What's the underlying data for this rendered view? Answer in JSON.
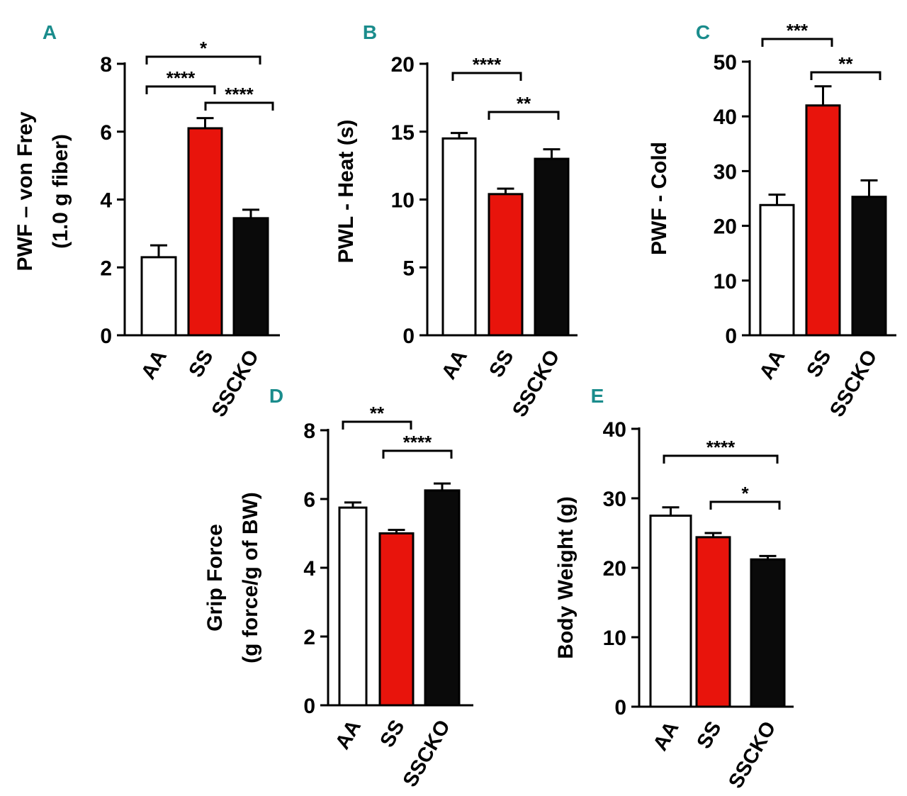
{
  "colors": {
    "AA": "#ffffff",
    "SS": "#e8140c",
    "SSCKO": "#0a0a0a",
    "panel_letter": "#1a8c8c"
  },
  "chart_data": [
    {
      "panel": "A",
      "type": "bar",
      "categories": [
        "AA",
        "SS",
        "SSCKO"
      ],
      "ylabel": [
        "PWF – von Frey",
        "(1.0 g fiber)"
      ],
      "values": [
        2.3,
        6.1,
        3.45
      ],
      "errors": [
        0.35,
        0.3,
        0.25
      ],
      "ylim": [
        0,
        8
      ],
      "yticks": [
        0,
        2,
        4,
        6,
        8
      ],
      "brackets": [
        {
          "from": "AA",
          "to": "SSCKO",
          "label": "*"
        },
        {
          "from": "AA",
          "to": "SS",
          "label": "****"
        },
        {
          "from": "SS",
          "to": "SSCKO",
          "label": "****"
        }
      ]
    },
    {
      "panel": "B",
      "type": "bar",
      "categories": [
        "AA",
        "SS",
        "SSCKO"
      ],
      "ylabel": [
        "PWL - Heat (s)"
      ],
      "values": [
        14.5,
        10.4,
        13.0
      ],
      "errors": [
        0.4,
        0.4,
        0.7
      ],
      "ylim": [
        0,
        20
      ],
      "yticks": [
        0,
        5,
        10,
        15,
        20
      ],
      "brackets": [
        {
          "from": "AA",
          "to": "SS",
          "label": "****"
        },
        {
          "from": "SS",
          "to": "SSCKO",
          "label": "**"
        }
      ]
    },
    {
      "panel": "C",
      "type": "bar",
      "categories": [
        "AA",
        "SS",
        "SSCKO"
      ],
      "ylabel": [
        "PWF - Cold"
      ],
      "values": [
        23.8,
        42.0,
        25.3
      ],
      "errors": [
        1.9,
        3.5,
        3.0
      ],
      "ylim": [
        0,
        50
      ],
      "yticks": [
        0,
        10,
        20,
        30,
        40,
        50
      ],
      "brackets": [
        {
          "from": "AA",
          "to": "SS",
          "label": "***"
        },
        {
          "from": "SS",
          "to": "SSCKO",
          "label": "**"
        }
      ]
    },
    {
      "panel": "D",
      "type": "bar",
      "categories": [
        "AA",
        "SS",
        "SSCKO"
      ],
      "ylabel": [
        "Grip Force",
        "(g force/g of BW)"
      ],
      "values": [
        5.75,
        5.0,
        6.25
      ],
      "errors": [
        0.15,
        0.1,
        0.2
      ],
      "ylim": [
        0,
        8
      ],
      "yticks": [
        0,
        2,
        4,
        6,
        8
      ],
      "brackets": [
        {
          "from": "AA",
          "to": "SS",
          "label": "**"
        },
        {
          "from": "SS",
          "to": "SSCKO",
          "label": "****"
        }
      ]
    },
    {
      "panel": "E",
      "type": "bar",
      "categories": [
        "AA",
        "SS",
        "SSCKO"
      ],
      "ylabel": [
        "Body Weight (g)"
      ],
      "values": [
        27.5,
        24.4,
        21.2
      ],
      "errors": [
        1.2,
        0.6,
        0.5
      ],
      "ylim": [
        0,
        40
      ],
      "yticks": [
        0,
        10,
        20,
        30,
        40
      ],
      "brackets": [
        {
          "from": "AA",
          "to": "SSCKO",
          "label": "****"
        },
        {
          "from": "SS",
          "to": "SSCKO",
          "label": "*"
        }
      ]
    }
  ]
}
